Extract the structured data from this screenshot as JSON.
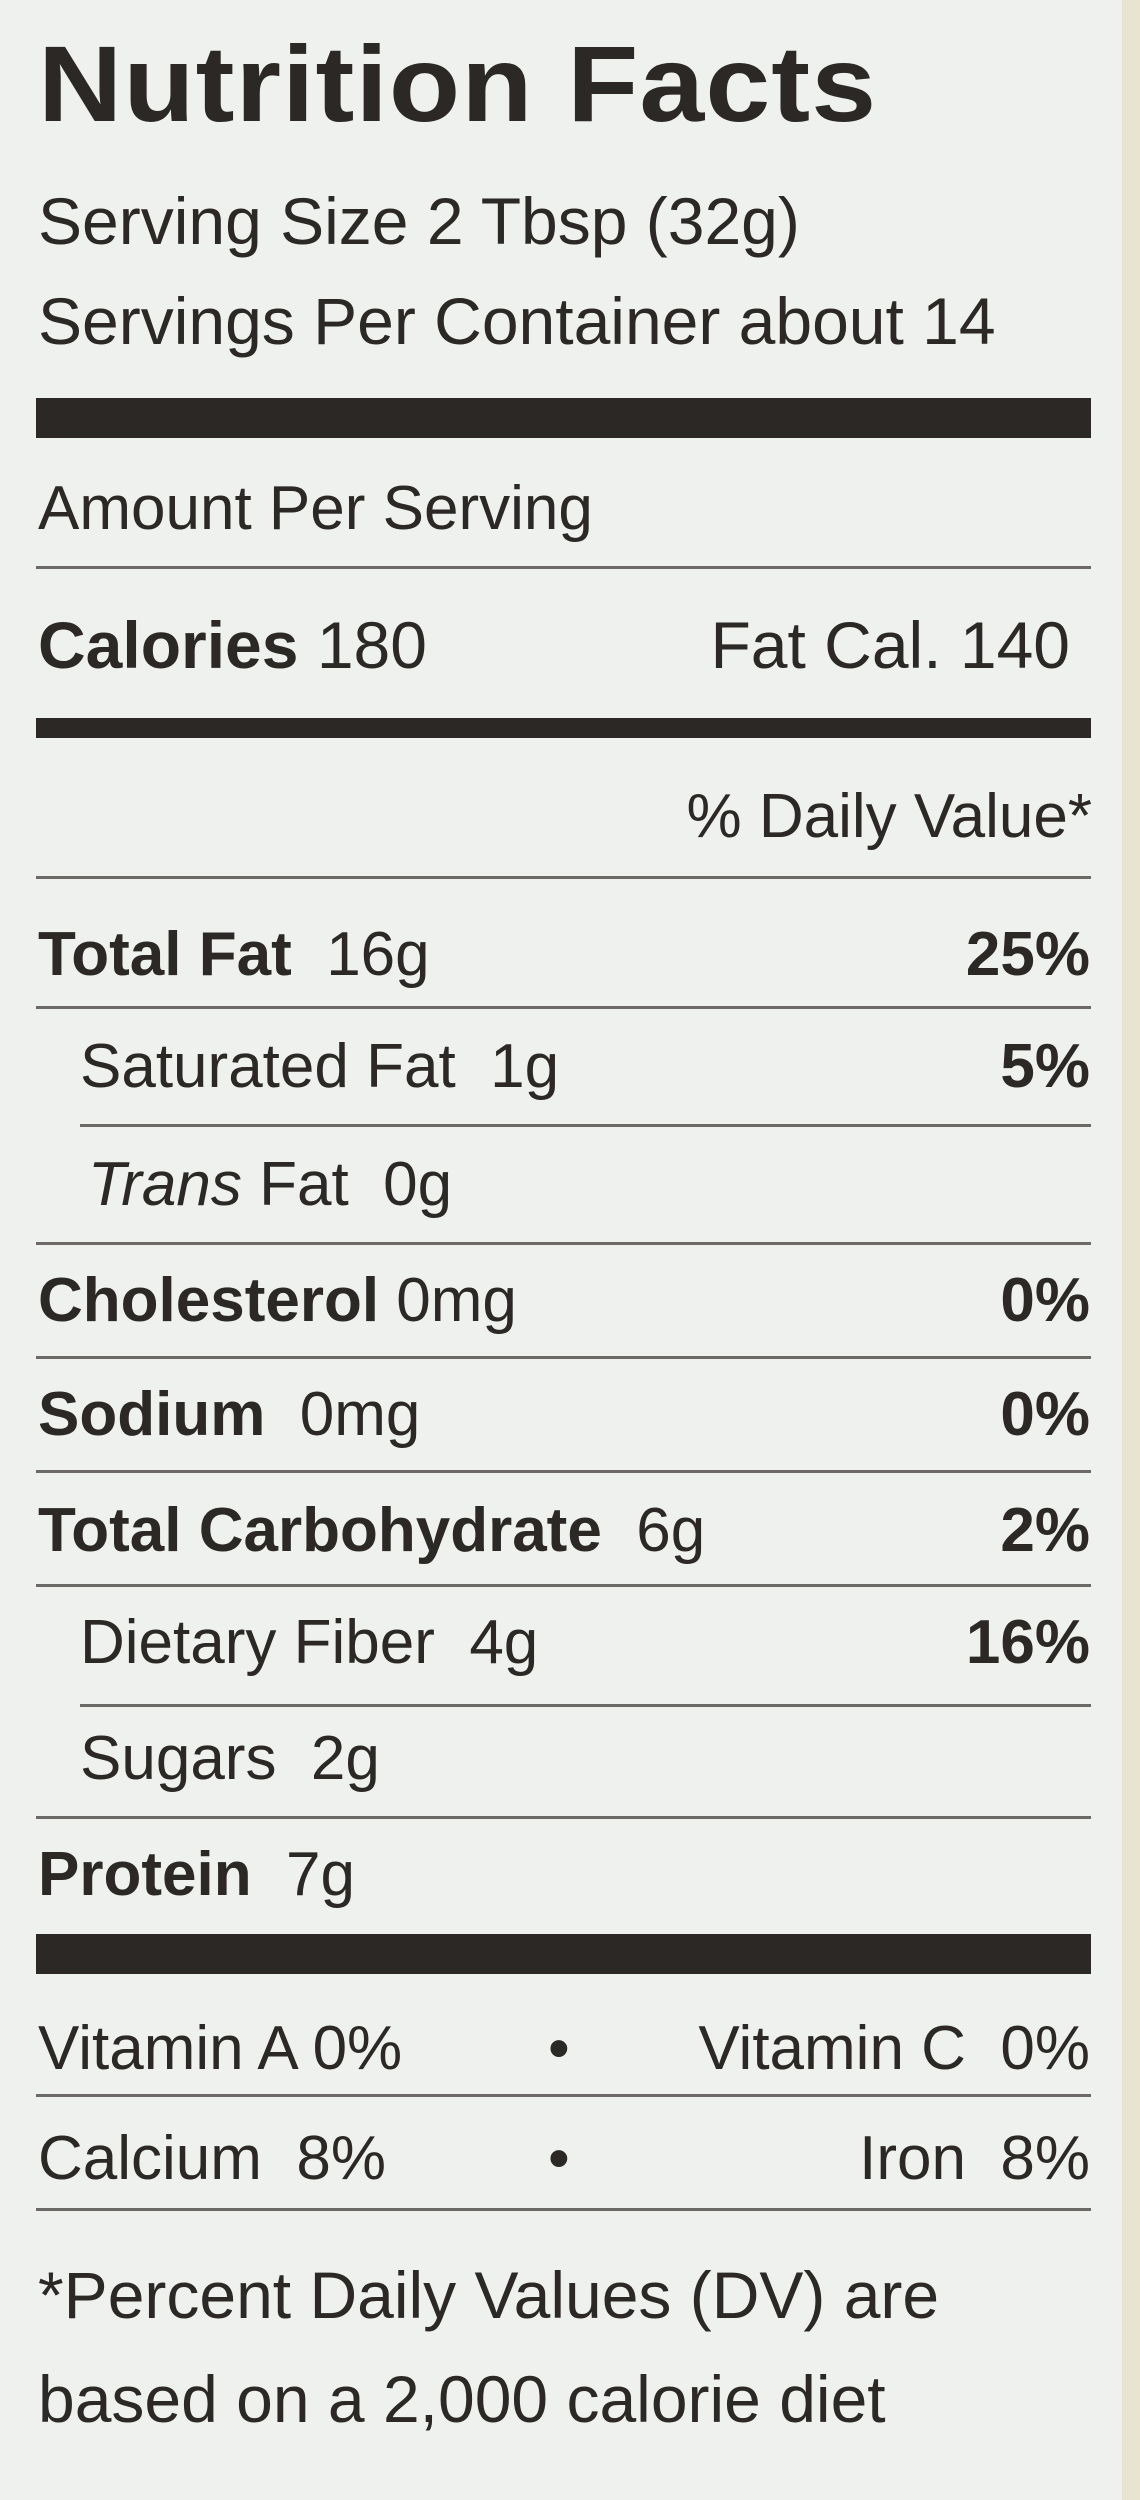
{
  "title": "Nutrition Facts",
  "serving_size": "Serving Size 2 Tbsp (32g)",
  "servings_per_container": "Servings Per Container about 14",
  "amount_per_serving": "Amount Per Serving",
  "calories": {
    "label": "Calories",
    "value": "180"
  },
  "fat_calories": "Fat Cal. 140",
  "daily_value_header": "% Daily Value*",
  "rows": {
    "total_fat": {
      "label": "Total Fat",
      "amount": "16g",
      "dv": "25%"
    },
    "saturated_fat": {
      "label": "Saturated Fat",
      "amount": "1g",
      "dv": "5%"
    },
    "trans_fat": {
      "label_italic": "Trans",
      "label": "Fat",
      "amount": "0g"
    },
    "cholesterol": {
      "label": "Cholesterol",
      "amount": "0mg",
      "dv": "0%"
    },
    "sodium": {
      "label": "Sodium",
      "amount": "0mg",
      "dv": "0%"
    },
    "total_carbohydrate": {
      "label": "Total Carbohydrate",
      "amount": "6g",
      "dv": "2%"
    },
    "dietary_fiber": {
      "label": "Dietary Fiber",
      "amount": "4g",
      "dv": "16%"
    },
    "sugars": {
      "label": "Sugars",
      "amount": "2g"
    },
    "protein": {
      "label": "Protein",
      "amount": "7g"
    }
  },
  "vitamins": {
    "vitamin_a": "Vitamin A 0%",
    "vitamin_c": "Vitamin C  0%",
    "calcium": "Calcium  8%",
    "iron": "Iron  8%",
    "separator": "•"
  },
  "footnote": {
    "line1": "*Percent Daily Values (DV) are",
    "line2": "based on a 2,000 calorie diet"
  }
}
